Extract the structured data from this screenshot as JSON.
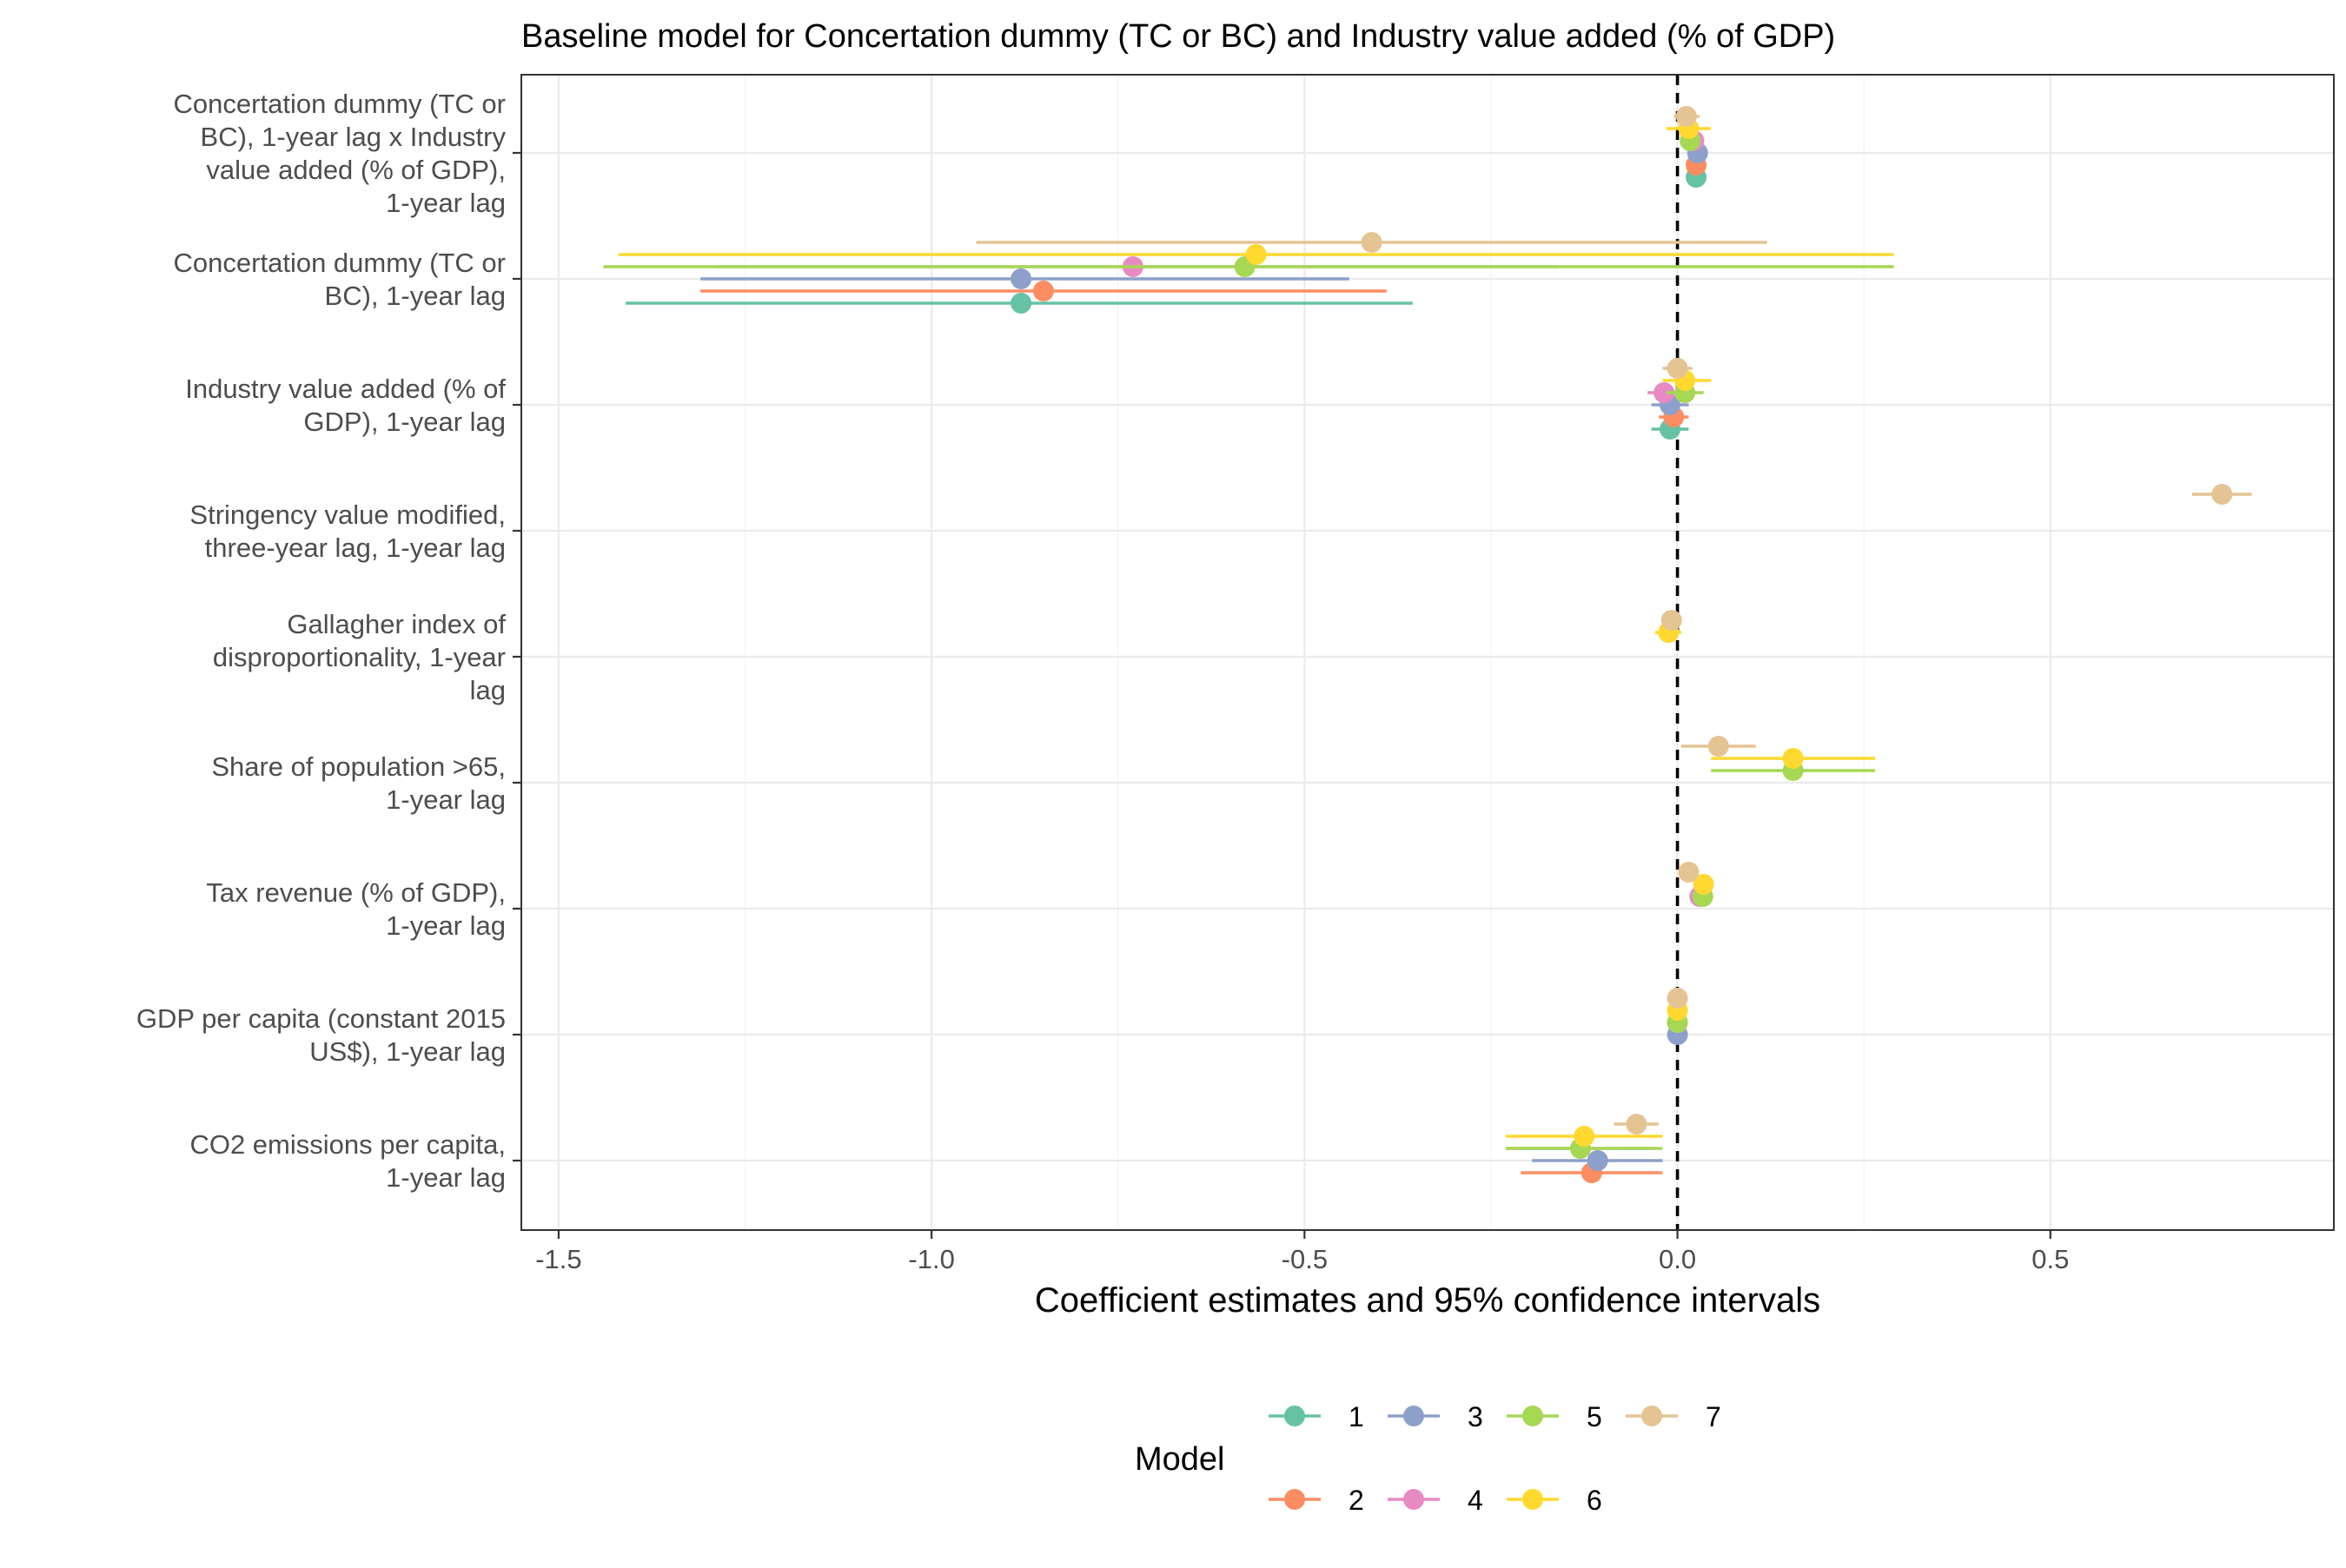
{
  "chart_data": {
    "type": "scatter",
    "subtype": "coefficient-plot",
    "title": "Baseline model for Concertation dummy (TC or BC) and Industry value added (% of GDP)",
    "xlabel": "Coefficient estimates and 95% confidence intervals",
    "ylabel": "",
    "xlim": [
      -1.55,
      0.88
    ],
    "xticks": [
      -1.5,
      -1.0,
      -0.5,
      0.0,
      0.5
    ],
    "xtick_labels": [
      "-1.5",
      "-1.0",
      "-0.5",
      "0.0",
      "0.5"
    ],
    "reference_line": 0,
    "grid": true,
    "legend": {
      "title": "Model",
      "position": "bottom"
    },
    "terms": [
      {
        "label_lines": [
          "Concertation dummy (TC or",
          "BC), 1-year lag x Industry",
          "value added (% of GDP),",
          "1-year lag"
        ]
      },
      {
        "label_lines": [
          "Concertation dummy (TC or",
          "BC), 1-year lag"
        ]
      },
      {
        "label_lines": [
          "Industry value added (% of",
          "GDP), 1-year lag"
        ]
      },
      {
        "label_lines": [
          "Stringency value modified,",
          "three-year lag, 1-year lag"
        ]
      },
      {
        "label_lines": [
          "Gallagher index of",
          "disproportionality, 1-year",
          "lag"
        ]
      },
      {
        "label_lines": [
          "Share of population >65,",
          "1-year lag"
        ]
      },
      {
        "label_lines": [
          "Tax revenue (% of GDP),",
          "1-year lag"
        ]
      },
      {
        "label_lines": [
          "GDP per capita (constant 2015",
          "US$), 1-year lag"
        ]
      },
      {
        "label_lines": [
          "CO2 emissions per capita,",
          "1-year lag"
        ]
      }
    ],
    "series": [
      {
        "name": "1",
        "color": "#66C2A5",
        "points": [
          {
            "term": 0,
            "est": 0.025,
            "lo": 0.015,
            "hi": 0.035
          },
          {
            "term": 1,
            "est": -0.88,
            "lo": -1.41,
            "hi": -0.355
          },
          {
            "term": 2,
            "est": -0.01,
            "lo": -0.035,
            "hi": 0.015
          }
        ]
      },
      {
        "name": "2",
        "color": "#FC8D62",
        "points": [
          {
            "term": 0,
            "est": 0.025,
            "lo": 0.015,
            "hi": 0.035
          },
          {
            "term": 1,
            "est": -0.85,
            "lo": -1.31,
            "hi": -0.39
          },
          {
            "term": 2,
            "est": -0.005,
            "lo": -0.025,
            "hi": 0.015
          },
          {
            "term": 8,
            "est": -0.115,
            "lo": -0.21,
            "hi": -0.02
          }
        ]
      },
      {
        "name": "3",
        "color": "#8DA0CB",
        "points": [
          {
            "term": 0,
            "est": 0.027,
            "lo": 0.017,
            "hi": 0.037
          },
          {
            "term": 1,
            "est": -0.88,
            "lo": -1.31,
            "hi": -0.44
          },
          {
            "term": 2,
            "est": -0.01,
            "lo": -0.035,
            "hi": 0.015
          },
          {
            "term": 7,
            "est": 0.0,
            "lo": -0.003,
            "hi": 0.003
          },
          {
            "term": 8,
            "est": -0.107,
            "lo": -0.195,
            "hi": -0.02
          }
        ]
      },
      {
        "name": "4",
        "color": "#E78AC3",
        "points": [
          {
            "term": 0,
            "est": 0.022,
            "lo": 0.012,
            "hi": 0.032
          },
          {
            "term": 1,
            "est": -0.73,
            "lo": -1.29,
            "hi": -0.16
          },
          {
            "term": 2,
            "est": -0.018,
            "lo": -0.04,
            "hi": 0.005
          },
          {
            "term": 6,
            "est": 0.03,
            "lo": 0.022,
            "hi": 0.038
          },
          {
            "term": 7,
            "est": 0.0,
            "lo": -0.003,
            "hi": 0.003
          },
          {
            "term": 8,
            "est": -0.13,
            "lo": -0.23,
            "hi": -0.03
          }
        ]
      },
      {
        "name": "5",
        "color": "#A6D854",
        "points": [
          {
            "term": 0,
            "est": 0.017,
            "lo": 0.005,
            "hi": 0.03
          },
          {
            "term": 1,
            "est": -0.58,
            "lo": -1.44,
            "hi": 0.29
          },
          {
            "term": 2,
            "est": 0.01,
            "lo": -0.015,
            "hi": 0.035
          },
          {
            "term": 5,
            "est": 0.155,
            "lo": 0.045,
            "hi": 0.265
          },
          {
            "term": 6,
            "est": 0.034,
            "lo": 0.026,
            "hi": 0.042
          },
          {
            "term": 7,
            "est": 0.0,
            "lo": -0.003,
            "hi": 0.003
          },
          {
            "term": 8,
            "est": -0.13,
            "lo": -0.23,
            "hi": -0.02
          }
        ]
      },
      {
        "name": "6",
        "color": "#FFD92F",
        "points": [
          {
            "term": 0,
            "est": 0.015,
            "lo": -0.015,
            "hi": 0.045
          },
          {
            "term": 1,
            "est": -0.565,
            "lo": -1.42,
            "hi": 0.29
          },
          {
            "term": 2,
            "est": 0.01,
            "lo": -0.02,
            "hi": 0.045
          },
          {
            "term": 4,
            "est": -0.012,
            "lo": -0.03,
            "hi": 0.005
          },
          {
            "term": 5,
            "est": 0.155,
            "lo": 0.045,
            "hi": 0.265
          },
          {
            "term": 6,
            "est": 0.035,
            "lo": 0.025,
            "hi": 0.045
          },
          {
            "term": 7,
            "est": 0.0,
            "lo": -0.003,
            "hi": 0.003
          },
          {
            "term": 8,
            "est": -0.125,
            "lo": -0.23,
            "hi": -0.02
          }
        ]
      },
      {
        "name": "7",
        "color": "#E5C494",
        "points": [
          {
            "term": 0,
            "est": 0.012,
            "lo": -0.005,
            "hi": 0.03
          },
          {
            "term": 1,
            "est": -0.41,
            "lo": -0.94,
            "hi": 0.12
          },
          {
            "term": 2,
            "est": 0.0,
            "lo": -0.02,
            "hi": 0.02
          },
          {
            "term": 3,
            "est": 0.73,
            "lo": 0.69,
            "hi": 0.77
          },
          {
            "term": 4,
            "est": -0.008,
            "lo": -0.02,
            "hi": 0.005
          },
          {
            "term": 5,
            "est": 0.055,
            "lo": 0.005,
            "hi": 0.105
          },
          {
            "term": 6,
            "est": 0.015,
            "lo": 0.005,
            "hi": 0.025
          },
          {
            "term": 7,
            "est": 0.0,
            "lo": -0.003,
            "hi": 0.003
          },
          {
            "term": 8,
            "est": -0.055,
            "lo": -0.085,
            "hi": -0.025
          }
        ]
      }
    ]
  }
}
